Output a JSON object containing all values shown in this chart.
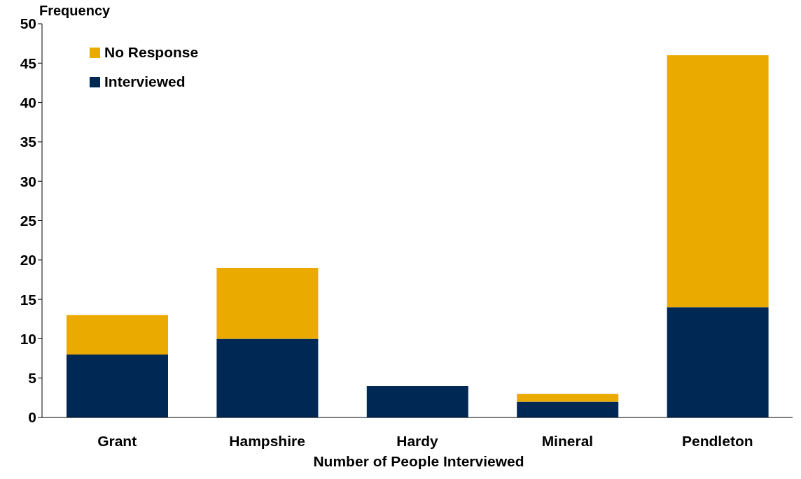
{
  "chart_data": {
    "type": "bar",
    "ylabel": "Frequency",
    "xlabel": "Number of People Interviewed",
    "categories": [
      "Grant",
      "Hampshire",
      "Hardy",
      "Mineral",
      "Pendleton"
    ],
    "stacked": true,
    "ylim": [
      0,
      50
    ],
    "yticks": [
      0,
      5,
      10,
      15,
      20,
      25,
      30,
      35,
      40,
      45,
      50
    ],
    "grid": false,
    "legend": "top left",
    "series": [
      {
        "name": "Interviewed",
        "color": "#002855",
        "values": [
          8,
          10,
          4,
          2,
          14
        ]
      },
      {
        "name": "No Response",
        "color": "#eaaa00",
        "values": [
          5,
          9,
          0,
          1,
          32
        ]
      }
    ]
  }
}
